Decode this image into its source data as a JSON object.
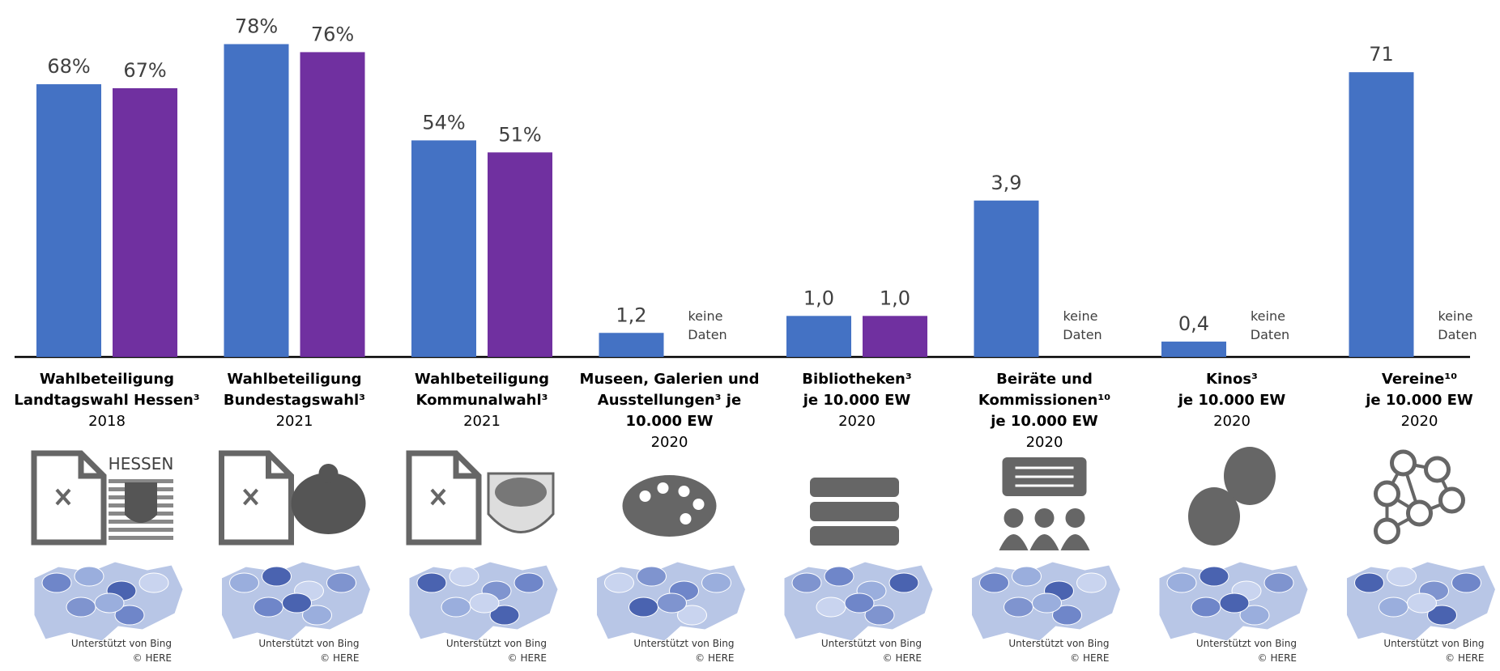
{
  "chart_data": [
    {
      "type": "bar",
      "label_lines": [
        "Wahlbeteiligung",
        "Landtagswahl Hessen³"
      ],
      "year": "2018",
      "ylim": [
        0,
        89
      ],
      "series": [
        {
          "color": "#4472c4",
          "values": [
            68
          ],
          "value_labels": [
            "68%"
          ]
        },
        {
          "color": "#7030a0",
          "values": [
            67
          ],
          "value_labels": [
            "67%"
          ]
        }
      ],
      "icon_text": "HESSEN",
      "map_credit": [
        "Unterstützt von Bing",
        "© HERE"
      ]
    },
    {
      "type": "bar",
      "label_lines": [
        "Wahlbeteiligung",
        "Bundestagswahl³"
      ],
      "year": "2021",
      "ylim": [
        0,
        89
      ],
      "series": [
        {
          "color": "#4472c4",
          "values": [
            78
          ],
          "value_labels": [
            "78%"
          ]
        },
        {
          "color": "#7030a0",
          "values": [
            76
          ],
          "value_labels": [
            "76%"
          ]
        }
      ],
      "map_credit": [
        "Unterstützt von Bing",
        "© HERE"
      ]
    },
    {
      "type": "bar",
      "label_lines": [
        "Wahlbeteiligung",
        "Kommunalwahl³"
      ],
      "year": "2021",
      "ylim": [
        0,
        89
      ],
      "series": [
        {
          "color": "#4472c4",
          "values": [
            54
          ],
          "value_labels": [
            "54%"
          ]
        },
        {
          "color": "#7030a0",
          "values": [
            51
          ],
          "value_labels": [
            "51%"
          ]
        }
      ],
      "map_credit": [
        "Unterstützt von Bing",
        "© HERE"
      ]
    },
    {
      "type": "bar",
      "label_lines": [
        "Museen, Galerien und",
        "Ausstellungen³ je",
        "10.000 EW"
      ],
      "year": "2020",
      "ylim": [
        0,
        17.8
      ],
      "series": [
        {
          "color": "#4472c4",
          "values": [
            1.2
          ],
          "value_labels": [
            "1,2"
          ]
        },
        {
          "color": "#7030a0",
          "values": [
            null
          ],
          "value_labels": [
            "keine Daten"
          ]
        }
      ],
      "map_credit": [
        "Unterstützt von Bing",
        "© HERE"
      ]
    },
    {
      "type": "bar",
      "label_lines": [
        "Bibliotheken³",
        "je 10.000 EW"
      ],
      "year": "2020",
      "ylim": [
        0,
        8.7
      ],
      "series": [
        {
          "color": "#4472c4",
          "values": [
            1.0
          ],
          "value_labels": [
            "1,0"
          ]
        },
        {
          "color": "#7030a0",
          "values": [
            1.0
          ],
          "value_labels": [
            "1,0"
          ]
        }
      ],
      "map_credit": [
        "Unterstützt von Bing",
        "© HERE"
      ]
    },
    {
      "type": "bar",
      "label_lines": [
        "Beiräte und",
        "Kommissionen¹⁰",
        "je 10.000 EW"
      ],
      "year": "2020",
      "ylim": [
        0,
        8.9
      ],
      "series": [
        {
          "color": "#4472c4",
          "values": [
            3.9
          ],
          "value_labels": [
            "3,9"
          ]
        },
        {
          "color": "#7030a0",
          "values": [
            null
          ],
          "value_labels": [
            "keine Daten"
          ]
        }
      ],
      "map_credit": [
        "Unterstützt von Bing",
        "© HERE"
      ]
    },
    {
      "type": "bar",
      "label_lines": [
        "Kinos³",
        "je 10.000 EW"
      ],
      "year": "2020",
      "ylim": [
        0,
        9.3
      ],
      "series": [
        {
          "color": "#4472c4",
          "values": [
            0.4
          ],
          "value_labels": [
            "0,4"
          ]
        },
        {
          "color": "#7030a0",
          "values": [
            null
          ],
          "value_labels": [
            "keine Daten"
          ]
        }
      ],
      "map_credit": [
        "Unterstützt von Bing",
        "© HERE"
      ]
    },
    {
      "type": "bar",
      "label_lines": [
        "Vereine¹⁰",
        "je 10.000 EW"
      ],
      "year": "2020",
      "ylim": [
        0,
        89
      ],
      "series": [
        {
          "color": "#4472c4",
          "values": [
            71
          ]
        },
        {
          "color": "#7030a0",
          "values": [
            null
          ],
          "value_labels": [
            "keine Daten"
          ]
        }
      ],
      "map_credit": [
        "Unterstützt von Bing",
        "© HERE"
      ]
    }
  ]
}
